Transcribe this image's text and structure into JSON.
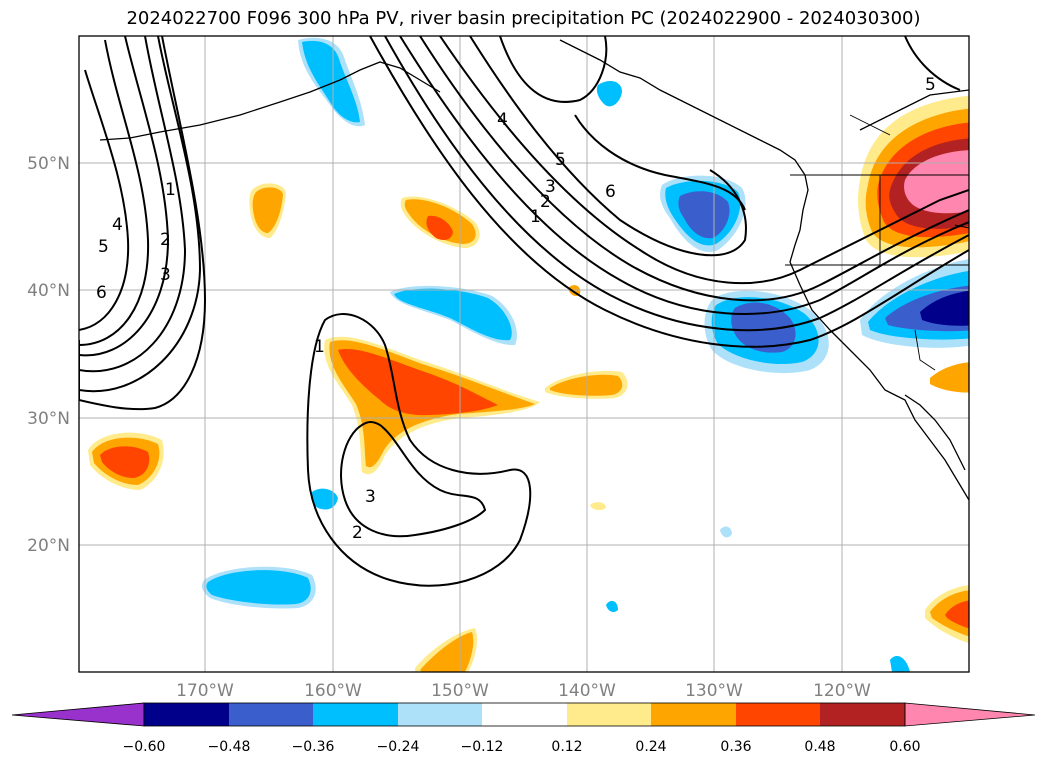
{
  "title": "2024022700 F096 300 hPa PV, river basin precipitation PC (2024022900 - 2024030300)",
  "map": {
    "lon_labels": [
      "170°W",
      "160°W",
      "150°W",
      "140°W",
      "130°W",
      "120°W"
    ],
    "lat_labels": [
      "50°N",
      "40°N",
      "30°N",
      "20°N"
    ],
    "pv_contour_labels": [
      "1",
      "2",
      "3",
      "4",
      "5",
      "6",
      "1",
      "2",
      "3",
      "4",
      "5",
      "6",
      "5",
      "1",
      "2",
      "3"
    ]
  },
  "colorbar": {
    "tick_labels": [
      "−0.60",
      "−0.48",
      "−0.36",
      "−0.24",
      "−0.12",
      "0.12",
      "0.24",
      "0.36",
      "0.48",
      "0.60"
    ],
    "colors": [
      "#9932CC",
      "#00008B",
      "#3A5FCD",
      "#00BFFF",
      "#ADE1FA",
      "#FFFFFF",
      "#FFEB8C",
      "#FFA500",
      "#FF4500",
      "#B22222",
      "#FF86AE"
    ]
  }
}
